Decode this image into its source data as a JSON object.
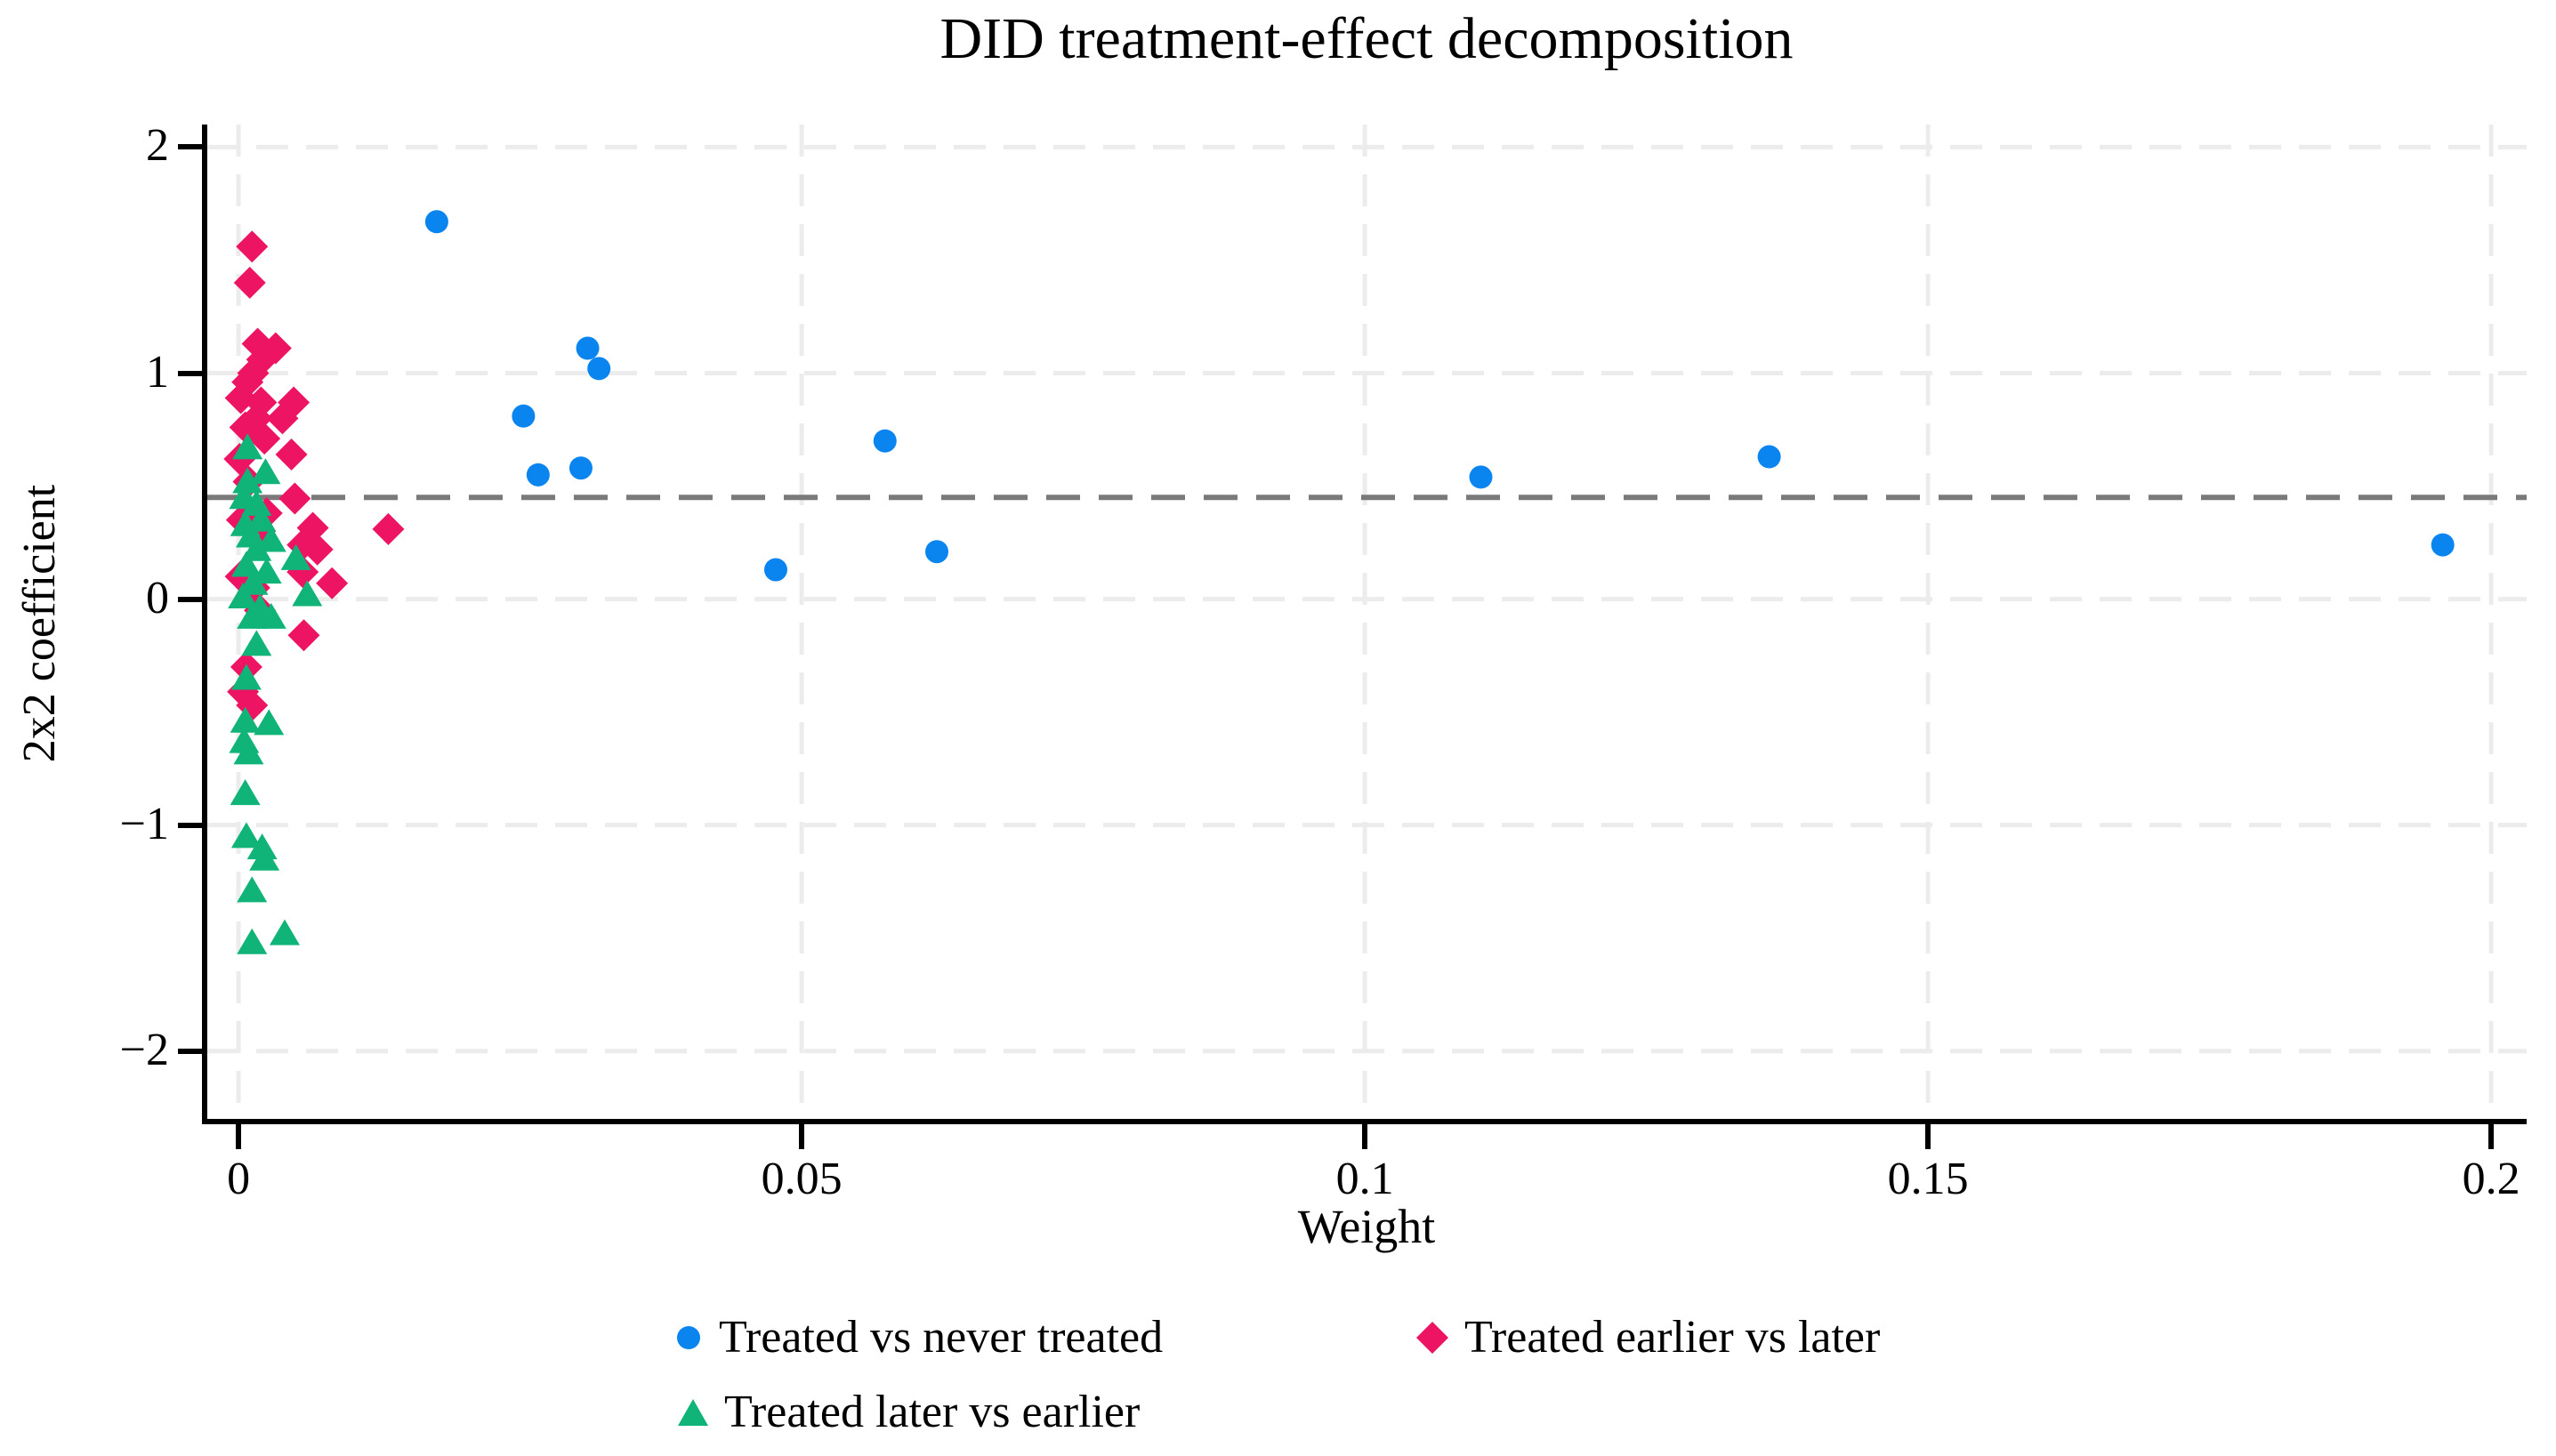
{
  "title": "DID treatment-effect decomposition",
  "y_axis": {
    "label": "2x2 coefficient",
    "ticks": [
      {
        "label": "2",
        "value": 2
      },
      {
        "label": "1",
        "value": 1
      },
      {
        "label": "0",
        "value": 0
      },
      {
        "label": "−1",
        "value": -1
      },
      {
        "label": "−2",
        "value": -2
      }
    ]
  },
  "x_axis": {
    "label": "Weight",
    "ticks": [
      {
        "label": "0",
        "value": 0
      },
      {
        "label": "0.05",
        "value": 0.05
      },
      {
        "label": "0.1",
        "value": 0.1
      },
      {
        "label": "0.15",
        "value": 0.15
      },
      {
        "label": "0.2",
        "value": 0.2
      }
    ]
  },
  "colors": {
    "blue": "#0a85f0",
    "pink": "#ed1563",
    "green": "#10b478",
    "grid": "#ececec",
    "reference_line": "#7a7a7a",
    "axis": "#000000"
  },
  "chart_data": {
    "type": "scatter",
    "title": "DID treatment-effect decomposition",
    "xlabel": "Weight",
    "ylabel": "2x2 coefficient",
    "xlim": [
      -0.00285,
      0.20315
    ],
    "ylim": [
      -2.3,
      2.1
    ],
    "x_ticks": [
      0,
      0.05,
      0.1,
      0.15,
      0.2
    ],
    "y_ticks": [
      2,
      1,
      0,
      -1,
      -2
    ],
    "grid": "dashed-light",
    "legend_position": "bottom",
    "reference_line": {
      "y": 0.45,
      "style": "dashed"
    },
    "series": [
      {
        "name": "Treated vs never treated",
        "marker": "circle",
        "color": "#0a85f0",
        "points": [
          [
            0.0176,
            1.67
          ],
          [
            0.0253,
            0.81
          ],
          [
            0.0266,
            0.55
          ],
          [
            0.0304,
            0.58
          ],
          [
            0.031,
            1.11
          ],
          [
            0.032,
            1.02
          ],
          [
            0.0477,
            0.13
          ],
          [
            0.0574,
            0.7
          ],
          [
            0.062,
            0.21
          ],
          [
            0.1103,
            0.54
          ],
          [
            0.1359,
            0.63
          ],
          [
            0.1957,
            0.24
          ]
        ]
      },
      {
        "name": "Treated earlier vs later",
        "marker": "diamond",
        "color": "#ed1563",
        "points": [
          [
            0.0012,
            1.56
          ],
          [
            0.001,
            1.4
          ],
          [
            0.0017,
            1.13
          ],
          [
            0.0033,
            1.11
          ],
          [
            0.0021,
            1.06
          ],
          [
            0.0013,
            1.0
          ],
          [
            0.0008,
            0.96
          ],
          [
            0.0002,
            0.89
          ],
          [
            0.002,
            0.87
          ],
          [
            0.0049,
            0.87
          ],
          [
            0.0016,
            0.8
          ],
          [
            0.0039,
            0.8
          ],
          [
            0.0006,
            0.76
          ],
          [
            0.0023,
            0.71
          ],
          [
            0.0001,
            0.62
          ],
          [
            0.0047,
            0.64
          ],
          [
            0.0009,
            0.52
          ],
          [
            0.005,
            0.445
          ],
          [
            0.0025,
            0.38
          ],
          [
            0.0003,
            0.35
          ],
          [
            0.0066,
            0.315
          ],
          [
            0.0133,
            0.31
          ],
          [
            0.0019,
            0.3
          ],
          [
            0.0057,
            0.24
          ],
          [
            0.007,
            0.22
          ],
          [
            0.0057,
            0.12
          ],
          [
            0.0002,
            0.1
          ],
          [
            0.0083,
            0.07
          ],
          [
            0.0014,
            0.05
          ],
          [
            0.0019,
            -0.05
          ],
          [
            0.0058,
            -0.16
          ],
          [
            0.0007,
            -0.3
          ],
          [
            0.0004,
            -0.41
          ],
          [
            0.0012,
            -0.47
          ]
        ]
      },
      {
        "name": "Treated later vs earlier",
        "marker": "triangle",
        "color": "#10b478",
        "points": [
          [
            0.0008,
            0.67
          ],
          [
            0.0024,
            0.56
          ],
          [
            0.0008,
            0.52
          ],
          [
            0.0005,
            0.45
          ],
          [
            0.0016,
            0.42
          ],
          [
            0.002,
            0.35
          ],
          [
            0.0006,
            0.33
          ],
          [
            0.0011,
            0.28
          ],
          [
            0.0029,
            0.26
          ],
          [
            0.0016,
            0.22
          ],
          [
            0.0051,
            0.18
          ],
          [
            0.0007,
            0.15
          ],
          [
            0.0025,
            0.12
          ],
          [
            0.0013,
            0.07
          ],
          [
            0.0061,
            0.02
          ],
          [
            0.0004,
            0.01
          ],
          [
            0.0019,
            -0.04
          ],
          [
            0.0012,
            -0.08
          ],
          [
            0.0029,
            -0.08
          ],
          [
            0.0016,
            -0.2
          ],
          [
            0.0007,
            -0.35
          ],
          [
            0.0006,
            -0.54
          ],
          [
            0.0027,
            -0.55
          ],
          [
            0.0005,
            -0.63
          ],
          [
            0.0009,
            -0.68
          ],
          [
            0.0006,
            -0.86
          ],
          [
            0.0007,
            -1.05
          ],
          [
            0.0021,
            -1.1
          ],
          [
            0.0023,
            -1.15
          ],
          [
            0.0012,
            -1.29
          ],
          [
            0.0041,
            -1.48
          ],
          [
            0.0012,
            -1.52
          ]
        ]
      }
    ]
  }
}
